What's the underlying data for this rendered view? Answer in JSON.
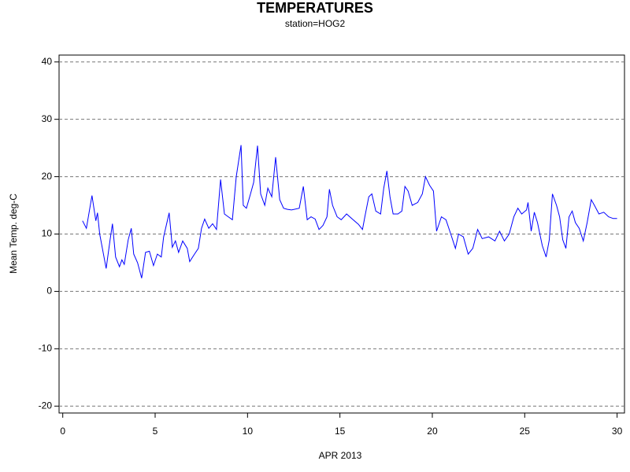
{
  "chart_data": {
    "type": "line",
    "title": "TEMPERATURES",
    "subtitle": "station=HOG2",
    "x_label": "APR 2013",
    "y_label": "Mean Temp. deg-C",
    "xlim": [
      -0.2,
      30.4
    ],
    "ylim": [
      -21.2,
      41.2
    ],
    "xticks": [
      0,
      5,
      10,
      15,
      20,
      25,
      30
    ],
    "yticks": [
      -20,
      -10,
      0,
      10,
      20,
      30,
      40
    ],
    "grid": true,
    "x": [
      1.07,
      1.28,
      1.58,
      1.79,
      1.88,
      2.0,
      2.35,
      2.56,
      2.69,
      2.86,
      3.07,
      3.2,
      3.33,
      3.54,
      3.71,
      3.84,
      4.05,
      4.27,
      4.48,
      4.69,
      4.91,
      5.12,
      5.33,
      5.46,
      5.76,
      5.93,
      6.1,
      6.27,
      6.49,
      6.74,
      6.87,
      7.13,
      7.34,
      7.51,
      7.68,
      7.9,
      8.11,
      8.32,
      8.54,
      8.75,
      8.96,
      9.18,
      9.39,
      9.65,
      9.77,
      9.94,
      10.16,
      10.33,
      10.54,
      10.71,
      10.93,
      11.1,
      11.31,
      11.52,
      11.74,
      11.95,
      12.16,
      12.38,
      12.8,
      13.02,
      13.23,
      13.44,
      13.66,
      13.87,
      14.08,
      14.3,
      14.43,
      14.6,
      14.85,
      15.07,
      15.36,
      15.71,
      16.0,
      16.22,
      16.35,
      16.56,
      16.73,
      16.94,
      17.2,
      17.37,
      17.54,
      17.71,
      17.88,
      18.14,
      18.35,
      18.52,
      18.69,
      18.91,
      19.21,
      19.46,
      19.63,
      19.85,
      20.06,
      20.23,
      20.49,
      20.74,
      21.0,
      21.25,
      21.42,
      21.68,
      21.94,
      22.19,
      22.45,
      22.7,
      23.05,
      23.39,
      23.64,
      23.9,
      24.16,
      24.41,
      24.63,
      24.84,
      25.1,
      25.18,
      25.35,
      25.52,
      25.69,
      25.95,
      26.16,
      26.33,
      26.5,
      26.72,
      26.89,
      27.06,
      27.23,
      27.4,
      27.57,
      27.74,
      27.95,
      28.17,
      28.38,
      28.6,
      28.77,
      29.02,
      29.28,
      29.54,
      29.79,
      30.0
    ],
    "series": [
      {
        "name": "Mean Temp.",
        "color": "#0000ff",
        "values": [
          12.3,
          11,
          16.7,
          12.3,
          13.7,
          10,
          4,
          9,
          11.8,
          6,
          4.3,
          5.5,
          4.7,
          9,
          11,
          6.5,
          5,
          2.3,
          6.8,
          7,
          4.5,
          6.5,
          6,
          9.5,
          13.7,
          7.7,
          8.8,
          6.8,
          8.8,
          7.5,
          5.2,
          6.5,
          7.5,
          11,
          12.6,
          11,
          11.8,
          10.8,
          19.5,
          13.5,
          13,
          12.5,
          20,
          25.5,
          15,
          14.5,
          17,
          19,
          25.4,
          17,
          15,
          18,
          16.5,
          23.4,
          16,
          14.5,
          14.3,
          14.2,
          14.5,
          18.3,
          12.5,
          13,
          12.6,
          10.8,
          11.5,
          13,
          17.8,
          15,
          13,
          12.5,
          13.5,
          12.5,
          11.7,
          10.8,
          13,
          16.5,
          17,
          14,
          13.5,
          18,
          21,
          16.5,
          13.5,
          13.5,
          14,
          18.3,
          17.5,
          15,
          15.5,
          17,
          20,
          18.5,
          17.5,
          10.5,
          13,
          12.5,
          10,
          7.5,
          10,
          9.5,
          6.5,
          7.5,
          10.8,
          9.2,
          9.5,
          8.8,
          10.5,
          8.8,
          10,
          13,
          14.5,
          13.5,
          14.2,
          15.5,
          10.5,
          13.8,
          12,
          8,
          6,
          9,
          17,
          15,
          13,
          9,
          7.5,
          13,
          14,
          12,
          11,
          8.8,
          12,
          16,
          15,
          13.5,
          13.8,
          13,
          12.7,
          12.7
        ]
      }
    ]
  }
}
